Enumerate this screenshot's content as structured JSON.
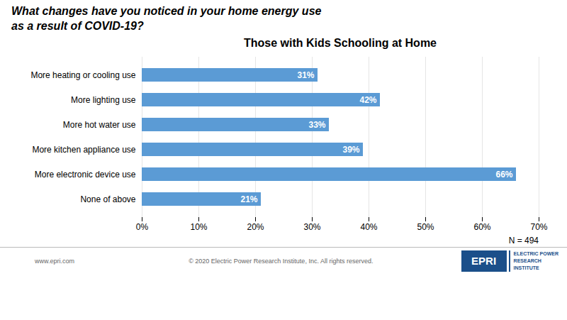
{
  "chart_data": {
    "type": "bar",
    "orientation": "horizontal",
    "title": "What changes have you noticed in your home energy use\nas a result of COVID-19?",
    "subtitle": "Those with Kids Schooling at Home",
    "categories": [
      "More heating or cooling use",
      "More lighting use",
      "More hot water use",
      "More kitchen appliance use",
      "More electronic device use",
      "None of above"
    ],
    "values": [
      31,
      42,
      33,
      39,
      66,
      21
    ],
    "value_labels": [
      "31%",
      "42%",
      "33%",
      "39%",
      "66%",
      "21%"
    ],
    "data_labels": true,
    "color": "#5B9BD5",
    "xlim": [
      0,
      70
    ],
    "xticks": [
      {
        "value": 0,
        "label": "0%"
      },
      {
        "value": 10,
        "label": "10%"
      },
      {
        "value": 20,
        "label": "20%"
      },
      {
        "value": 30,
        "label": "30%"
      },
      {
        "value": 40,
        "label": "40%"
      },
      {
        "value": 50,
        "label": "50%"
      },
      {
        "value": 60,
        "label": "60%"
      },
      {
        "value": 70,
        "label": "70%"
      }
    ],
    "grid": true,
    "annotations": [
      "N = 494"
    ],
    "footer": [
      "www.epri.com",
      "© 2020 Electric Power Research Institute, Inc. All rights reserved."
    ],
    "logo": [
      "EPRI",
      "ELECTRIC POWER",
      "RESEARCH",
      "INSTITUTE"
    ]
  }
}
